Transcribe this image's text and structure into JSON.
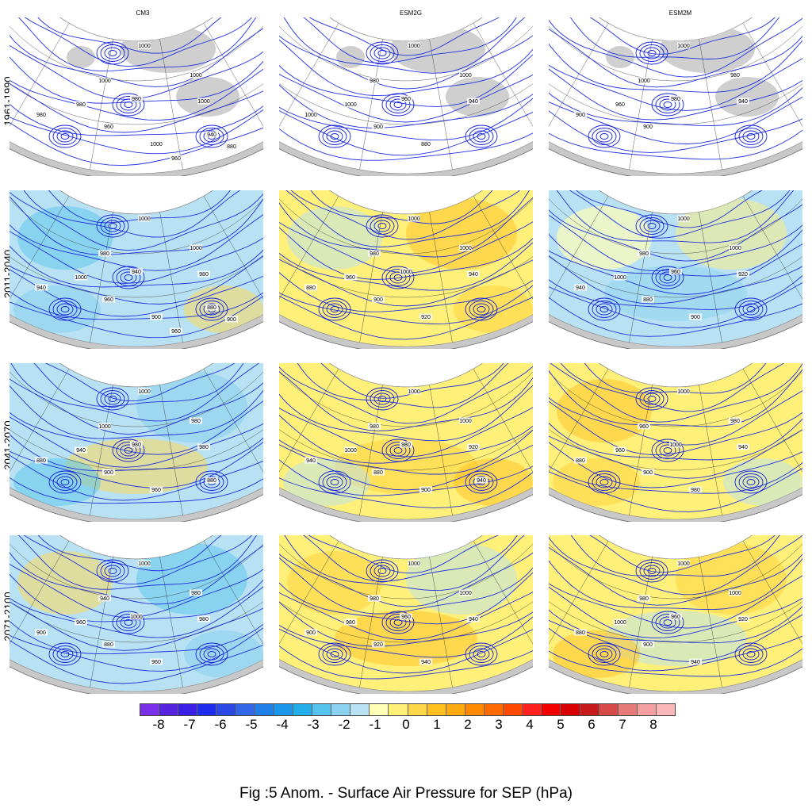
{
  "columns": [
    "CM3",
    "ESM2G",
    "ESM2M"
  ],
  "rows": [
    "1961-1990",
    "2011-2040",
    "2041-2070",
    "2071-2100"
  ],
  "colorbar": {
    "labels": [
      "-8",
      "-7",
      "-6",
      "-5",
      "-4",
      "-3",
      "-2",
      "-1",
      "0",
      "1",
      "2",
      "3",
      "4",
      "5",
      "6",
      "7",
      "8"
    ],
    "colors": [
      "#7a2fe8",
      "#5522e0",
      "#3b1ee6",
      "#1e2cf0",
      "#2a48e6",
      "#3366e8",
      "#1f7fe8",
      "#1a96ea",
      "#22aee8",
      "#55c3ee",
      "#8ad2ef",
      "#b8e2f3",
      "#ffffb8",
      "#fff07a",
      "#ffd84a",
      "#ffc020",
      "#ffaa10",
      "#ff8a00",
      "#ff6a00",
      "#ff4a00",
      "#ff2020",
      "#f20000",
      "#d80000",
      "#c81a1a",
      "#d84a4a",
      "#e87a7a",
      "#f4a0a0",
      "#fcb8b8"
    ]
  },
  "caption": "Fig :5  Anom.  - Surface Air Pressure for SEP (hPa)",
  "panels": [
    {
      "row": 0,
      "col": 0,
      "fill": "none",
      "contour_labels": [
        "1000",
        "1000",
        "1000",
        "980",
        "980",
        "1000",
        "980",
        "960",
        "1000",
        "940",
        "880",
        "960"
      ]
    },
    {
      "row": 0,
      "col": 1,
      "fill": "none",
      "contour_labels": [
        "1000",
        "1000",
        "980",
        "960",
        "1000",
        "940",
        "1000",
        "900",
        "880"
      ]
    },
    {
      "row": 0,
      "col": 2,
      "fill": "none",
      "contour_labels": [
        "1000",
        "980",
        "1000",
        "980",
        "960",
        "940",
        "900",
        "900"
      ]
    },
    {
      "row": 1,
      "col": 0,
      "fill": "cool",
      "contour_labels": [
        "1000",
        "1000",
        "980",
        "940",
        "1000",
        "980",
        "940",
        "960",
        "900",
        "880",
        "900",
        "960"
      ]
    },
    {
      "row": 1,
      "col": 1,
      "fill": "warm",
      "contour_labels": [
        "1000",
        "1000",
        "980",
        "1000",
        "960",
        "940",
        "880",
        "900",
        "920"
      ]
    },
    {
      "row": 1,
      "col": 2,
      "fill": "mixed",
      "contour_labels": [
        "1000",
        "1000",
        "980",
        "960",
        "1000",
        "920",
        "940",
        "880",
        "900"
      ]
    },
    {
      "row": 2,
      "col": 0,
      "fill": "cool",
      "contour_labels": [
        "1000",
        "980",
        "1000",
        "980",
        "940",
        "980",
        "880",
        "900",
        "960",
        "880"
      ]
    },
    {
      "row": 2,
      "col": 1,
      "fill": "warm",
      "contour_labels": [
        "1000",
        "1000",
        "980",
        "980",
        "1000",
        "920",
        "940",
        "880",
        "900",
        "940"
      ]
    },
    {
      "row": 2,
      "col": 2,
      "fill": "warm",
      "contour_labels": [
        "1000",
        "980",
        "960",
        "1000",
        "960",
        "940",
        "880",
        "900",
        "980"
      ]
    },
    {
      "row": 3,
      "col": 0,
      "fill": "cool",
      "contour_labels": [
        "1000",
        "980",
        "940",
        "1000",
        "960",
        "980",
        "900",
        "880",
        "960"
      ]
    },
    {
      "row": 3,
      "col": 1,
      "fill": "warm",
      "contour_labels": [
        "1000",
        "1000",
        "980",
        "960",
        "980",
        "940",
        "900",
        "920",
        "940"
      ]
    },
    {
      "row": 3,
      "col": 2,
      "fill": "warm",
      "contour_labels": [
        "1000",
        "1000",
        "980",
        "960",
        "1000",
        "920",
        "880",
        "900",
        "940"
      ]
    }
  ]
}
